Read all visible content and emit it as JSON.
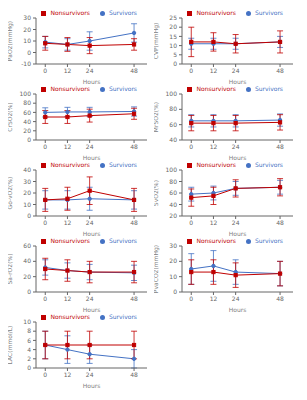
{
  "chart_data": [
    {
      "type": "line",
      "x_label": "Hours",
      "y_label": "PaO2(mmHg)",
      "x": [
        0,
        12,
        24,
        48
      ],
      "xlim": [
        -5,
        55
      ],
      "xticks": [
        0,
        12,
        24,
        48
      ],
      "ylim": [
        -10,
        30
      ],
      "yticks": [
        -10,
        0,
        10,
        20,
        30
      ],
      "legend": "upper right",
      "grid": false,
      "series": [
        {
          "name": "Survivors",
          "color": "#4472C4",
          "marker": "circle",
          "values": [
            9,
            7,
            10,
            17
          ],
          "errors": [
            5,
            5,
            8,
            8
          ]
        },
        {
          "name": "Nonsurvivors",
          "color": "#C00000",
          "marker": "square",
          "values": [
            8,
            7,
            6,
            7
          ],
          "errors": [
            6,
            6,
            7,
            5
          ]
        }
      ]
    },
    {
      "type": "line",
      "x_label": "Hours",
      "y_label": "CVP(mmHg)",
      "x": [
        0,
        12,
        24,
        48
      ],
      "xlim": [
        -5,
        55
      ],
      "xticks": [
        0,
        12,
        24,
        48
      ],
      "ylim": [
        0,
        25
      ],
      "yticks": [
        0,
        5,
        10,
        15,
        20,
        25
      ],
      "legend": "upper right",
      "grid": false,
      "series": [
        {
          "name": "Survivors",
          "color": "#4472C4",
          "marker": "circle",
          "values": [
            11,
            11,
            11,
            12
          ],
          "errors": [
            3,
            3,
            3,
            3
          ]
        },
        {
          "name": "Nonsurvivors",
          "color": "#C00000",
          "marker": "square",
          "values": [
            12,
            12,
            11,
            12
          ],
          "errors": [
            8,
            5,
            5,
            6
          ]
        }
      ]
    },
    {
      "type": "line",
      "x_label": "Hours",
      "y_label": "CrSO2(%)",
      "x": [
        0,
        12,
        24,
        48
      ],
      "xlim": [
        -5,
        55
      ],
      "xticks": [
        0,
        12,
        24,
        48
      ],
      "ylim": [
        0,
        100
      ],
      "yticks": [
        0,
        20,
        40,
        60,
        80,
        100
      ],
      "legend": "upper right",
      "grid": false,
      "series": [
        {
          "name": "Survivors",
          "color": "#4472C4",
          "marker": "circle",
          "values": [
            60,
            61,
            61,
            62
          ],
          "errors": [
            10,
            10,
            10,
            10
          ]
        },
        {
          "name": "Nonsurvivors",
          "color": "#C00000",
          "marker": "square",
          "values": [
            50,
            50,
            53,
            57
          ],
          "errors": [
            14,
            14,
            14,
            12
          ]
        }
      ]
    },
    {
      "type": "line",
      "x_label": "Hours",
      "y_label": "MrSO2(%)",
      "x": [
        0,
        12,
        24,
        48
      ],
      "xlim": [
        -5,
        55
      ],
      "xticks": [
        0,
        12,
        24,
        48
      ],
      "ylim": [
        40,
        100
      ],
      "yticks": [
        40,
        60,
        80,
        100
      ],
      "legend": "upper right",
      "grid": false,
      "series": [
        {
          "name": "Survivors",
          "color": "#4472C4",
          "marker": "circle",
          "values": [
            65,
            65,
            65,
            66
          ],
          "errors": [
            8,
            8,
            8,
            8
          ]
        },
        {
          "name": "Nonsurvivors",
          "color": "#C00000",
          "marker": "square",
          "values": [
            62,
            62,
            62,
            63
          ],
          "errors": [
            10,
            10,
            10,
            10
          ]
        }
      ]
    },
    {
      "type": "line",
      "x_label": "Hours",
      "y_label": "Go-vO2(%)",
      "x": [
        0,
        12,
        24,
        48
      ],
      "xlim": [
        -5,
        55
      ],
      "xticks": [
        0,
        12,
        24,
        48
      ],
      "ylim": [
        0,
        40
      ],
      "yticks": [
        0,
        10,
        20,
        30,
        40
      ],
      "legend": "upper right",
      "grid": false,
      "series": [
        {
          "name": "Survivors",
          "color": "#4472C4",
          "marker": "circle",
          "values": [
            14,
            14,
            15,
            14
          ],
          "errors": [
            8,
            8,
            10,
            8
          ]
        },
        {
          "name": "Nonsurvivors",
          "color": "#C00000",
          "marker": "square",
          "values": [
            14,
            15,
            22,
            14
          ],
          "errors": [
            10,
            10,
            12,
            10
          ]
        }
      ]
    },
    {
      "type": "line",
      "x_label": "Hours",
      "y_label": "SvO2(%)",
      "x": [
        0,
        12,
        24,
        48
      ],
      "xlim": [
        -5,
        55
      ],
      "xticks": [
        0,
        12,
        24,
        48
      ],
      "ylim": [
        20,
        100
      ],
      "yticks": [
        20,
        40,
        60,
        80,
        100
      ],
      "legend": "upper right",
      "grid": false,
      "series": [
        {
          "name": "Survivors",
          "color": "#4472C4",
          "marker": "circle",
          "values": [
            58,
            60,
            68,
            70
          ],
          "errors": [
            12,
            12,
            12,
            12
          ]
        },
        {
          "name": "Nonsurvivors",
          "color": "#C00000",
          "marker": "square",
          "values": [
            52,
            55,
            68,
            70
          ],
          "errors": [
            15,
            15,
            15,
            15
          ]
        }
      ]
    },
    {
      "type": "line",
      "x_label": "Hours",
      "y_label": "Sa-rO2(%)",
      "x": [
        0,
        12,
        24,
        48
      ],
      "xlim": [
        -5,
        55
      ],
      "xticks": [
        0,
        12,
        24,
        48
      ],
      "ylim": [
        0,
        60
      ],
      "yticks": [
        0,
        20,
        40,
        60
      ],
      "legend": "upper right",
      "grid": false,
      "series": [
        {
          "name": "Survivors",
          "color": "#4472C4",
          "marker": "circle",
          "values": [
            32,
            28,
            26,
            25
          ],
          "errors": [
            10,
            10,
            10,
            10
          ]
        },
        {
          "name": "Nonsurvivors",
          "color": "#C00000",
          "marker": "square",
          "values": [
            30,
            28,
            26,
            26
          ],
          "errors": [
            14,
            14,
            14,
            14
          ]
        }
      ]
    },
    {
      "type": "line",
      "x_label": "Hours",
      "y_label": "PvaCO2(mmHg)",
      "x": [
        0,
        12,
        24,
        48
      ],
      "xlim": [
        -5,
        55
      ],
      "xticks": [
        0,
        12,
        24,
        48
      ],
      "ylim": [
        0,
        30
      ],
      "yticks": [
        0,
        10,
        20,
        30
      ],
      "legend": "upper right",
      "grid": false,
      "series": [
        {
          "name": "Survivors",
          "color": "#4472C4",
          "marker": "circle",
          "values": [
            15,
            17,
            13,
            12
          ],
          "errors": [
            10,
            10,
            8,
            8
          ]
        },
        {
          "name": "Nonsurvivors",
          "color": "#C00000",
          "marker": "square",
          "values": [
            13,
            13,
            11,
            12
          ],
          "errors": [
            8,
            8,
            8,
            8
          ]
        }
      ]
    },
    {
      "type": "line",
      "x_label": "Hours",
      "y_label": "LAC(mmol/L)",
      "x": [
        0,
        12,
        24,
        48
      ],
      "xlim": [
        -5,
        55
      ],
      "xticks": [
        0,
        12,
        24,
        48
      ],
      "ylim": [
        0,
        10
      ],
      "yticks": [
        0,
        2,
        4,
        6,
        8,
        10
      ],
      "legend": "upper right",
      "grid": false,
      "series": [
        {
          "name": "Survivors",
          "color": "#4472C4",
          "marker": "circle",
          "values": [
            5,
            4,
            3,
            2
          ],
          "errors": [
            3,
            3,
            2,
            2
          ]
        },
        {
          "name": "Nonsurvivors",
          "color": "#C00000",
          "marker": "square",
          "values": [
            5,
            5,
            5,
            5
          ],
          "errors": [
            3,
            3,
            3,
            3
          ]
        }
      ]
    }
  ]
}
